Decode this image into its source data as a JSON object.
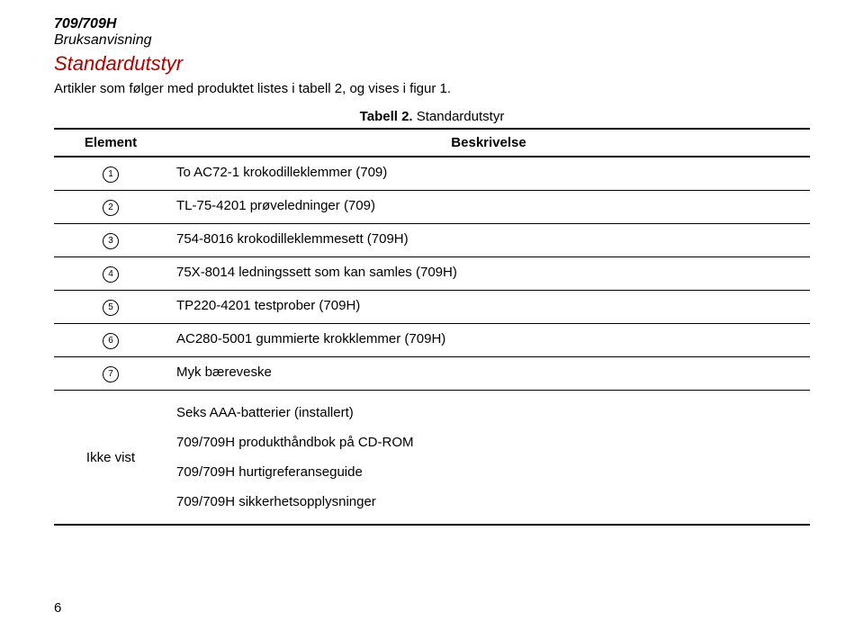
{
  "header": {
    "model": "709/709H",
    "doc_type": "Bruksanvisning"
  },
  "section": {
    "title": "Standardutstyr",
    "intro": "Artikler som følger med produktet listes i tabell 2, og vises i figur 1."
  },
  "table": {
    "caption_prefix": "Tabell 2.",
    "caption_label": " Standardutstyr",
    "col_element": "Element",
    "col_description": "Beskrivelse",
    "rows": [
      {
        "num": "1",
        "desc": "To AC72-1 krokodilleklemmer (709)"
      },
      {
        "num": "2",
        "desc": "TL-75-4201 prøveledninger (709)"
      },
      {
        "num": "3",
        "desc": "754-8016 krokodilleklemmesett (709H)"
      },
      {
        "num": "4",
        "desc": "75X-8014 ledningssett som kan samles (709H)"
      },
      {
        "num": "5",
        "desc": "TP220-4201 testprober (709H)"
      },
      {
        "num": "6",
        "desc": "AC280-5001 gummierte krokklemmer (709H)"
      },
      {
        "num": "7",
        "desc": "Myk bæreveske"
      }
    ],
    "not_shown_label": "Ikke vist",
    "not_shown_items": [
      "Seks AAA-batterier (installert)",
      "709/709H produkthåndbok på CD-ROM",
      "709/709H hurtigreferanseguide",
      "709/709H sikkerhetsopplysninger"
    ]
  },
  "page_number": "6"
}
